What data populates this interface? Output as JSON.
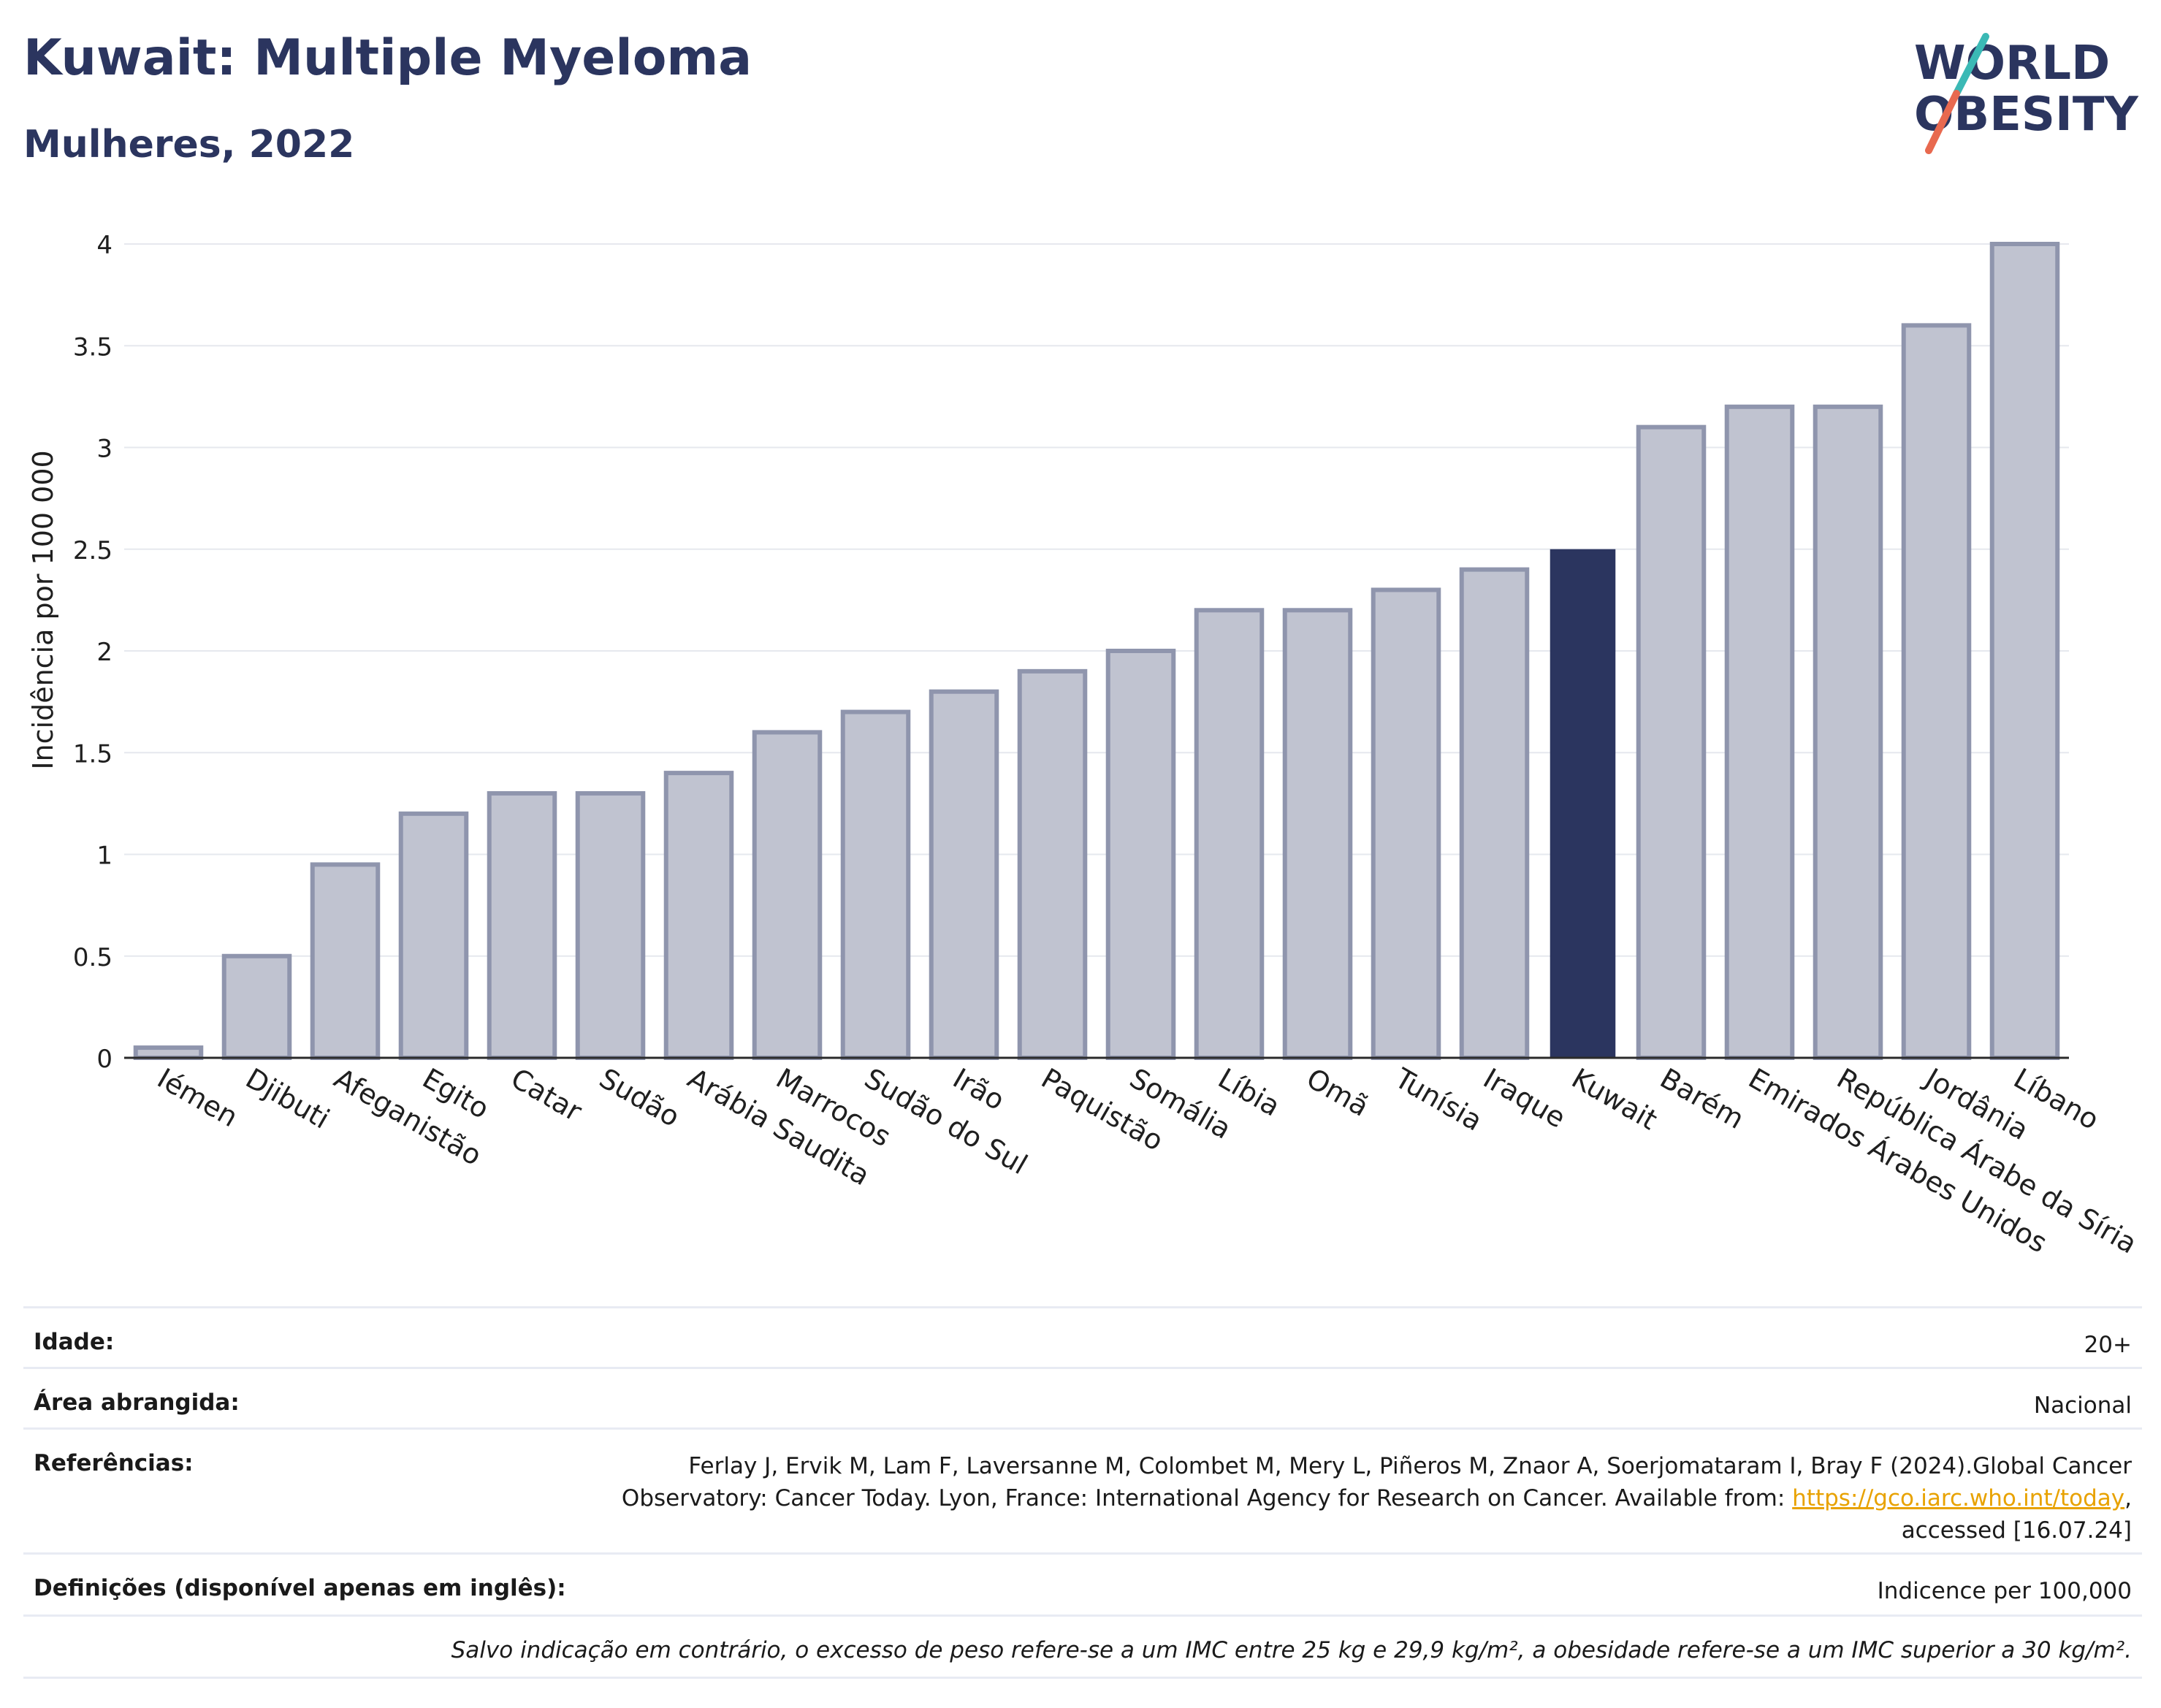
{
  "header": {
    "title": "Kuwait: Multiple Myeloma",
    "subtitle": "Mulheres, 2022"
  },
  "logo": {
    "line1": "WORLD",
    "line2": "OBESITY",
    "stripe_colors": [
      "#3bb9b5",
      "#e8694f"
    ]
  },
  "colors": {
    "bar": "#c0c3d0",
    "bar_border": "#8f95ad",
    "highlight": "#2b355f",
    "grid": "#e6e8ee"
  },
  "chart_data": {
    "type": "bar",
    "title": "Kuwait: Multiple Myeloma",
    "subtitle": "Mulheres, 2022",
    "ylabel": "Incidência por 100 000",
    "xlabel": "",
    "ylim": [
      0,
      4
    ],
    "yticks": [
      0,
      0.5,
      1,
      1.5,
      2,
      2.5,
      3,
      3.5,
      4
    ],
    "ytick_labels": [
      "0",
      "0.5",
      "1",
      "1.5",
      "2",
      "2.5",
      "3",
      "3.5",
      "4"
    ],
    "grid": true,
    "categories": [
      "Iémen",
      "Djibuti",
      "Afeganistão",
      "Egito",
      "Catar",
      "Sudão",
      "Arábia Saudita",
      "Marrocos",
      "Sudão do Sul",
      "Irão",
      "Paquistão",
      "Somália",
      "Líbia",
      "Omã",
      "Tunísia",
      "Iraque",
      "Kuwait",
      "Barém",
      "Emirados Árabes Unidos",
      "República Árabe da Síria",
      "Jordânia",
      "Líbano"
    ],
    "values": [
      0.05,
      0.5,
      0.95,
      1.2,
      1.3,
      1.3,
      1.4,
      1.6,
      1.7,
      1.8,
      1.9,
      2.0,
      2.2,
      2.2,
      2.3,
      2.4,
      2.5,
      3.1,
      3.2,
      3.2,
      3.6,
      4.0
    ],
    "highlight": "Kuwait"
  },
  "meta": {
    "age_label": "Idade:",
    "age_value": "20+",
    "area_label": "Área abrangida:",
    "area_value": "Nacional",
    "ref_label": "Referências:",
    "ref_text": "Ferlay J, Ervik M, Lam F, Laversanne M, Colombet M, Mery L, Piñeros M, Znaor A, Soerjomataram I, Bray F (2024).Global Cancer Observatory: Cancer Today. Lyon, France: International Agency for Research on Cancer. Available from: ",
    "ref_link": "https://gco.iarc.who.int/today",
    "ref_tail": ", accessed [16.07.24]",
    "def_label": "Definições (disponível apenas em inglês):",
    "def_value": "Indicence per 100,000",
    "note": "Salvo indicação em contrário, o excesso de peso refere-se a um IMC entre 25 kg e 29,9 kg/m², a obesidade refere-se a um IMC superior a 30 kg/m²."
  }
}
